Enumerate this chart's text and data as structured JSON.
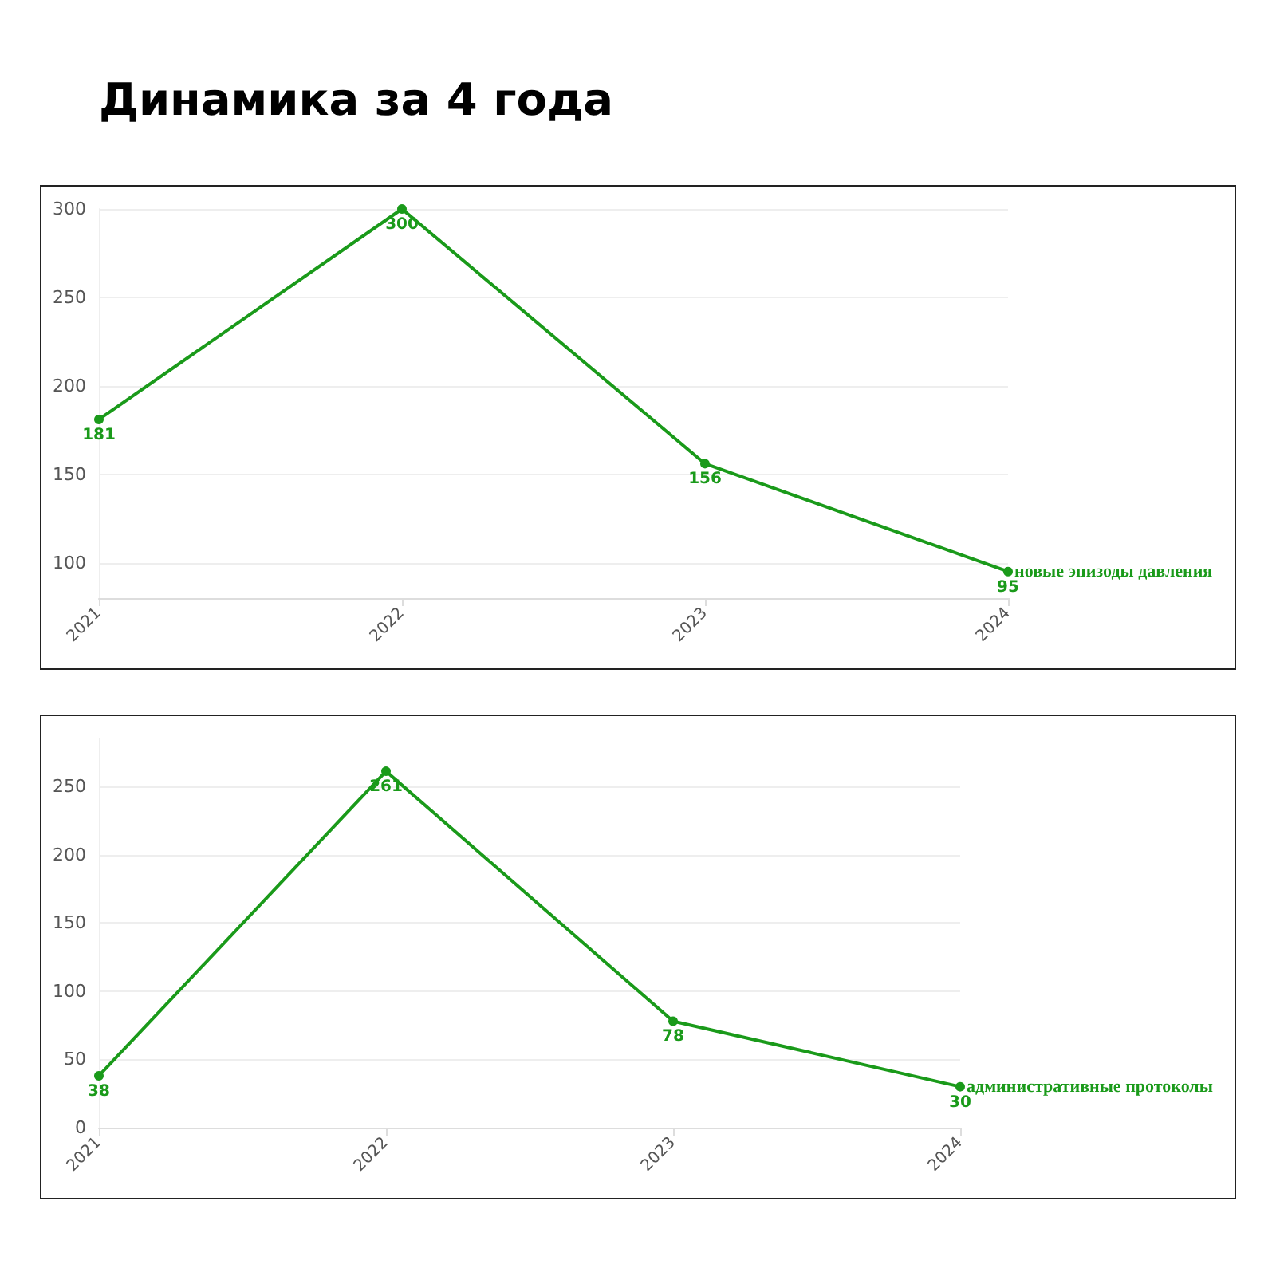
{
  "chart_data": [
    {
      "type": "line",
      "title": "Динамика за 4 года",
      "categories": [
        "2021",
        "2022",
        "2023",
        "2024"
      ],
      "series": [
        {
          "name": "новые эпизоды давления",
          "color": "#1a9a1a",
          "values": [
            181,
            300,
            156,
            95
          ]
        }
      ],
      "ylim": [
        80,
        300
      ],
      "yticks": [
        100,
        150,
        200,
        250,
        300
      ],
      "grid": "y",
      "marker": "circle",
      "data_labels": true,
      "legend": false
    },
    {
      "type": "line",
      "categories": [
        "2021",
        "2022",
        "2023",
        "2024"
      ],
      "series": [
        {
          "name": "административные протоколы",
          "color": "#1a9a1a",
          "values": [
            38,
            261,
            78,
            30
          ]
        }
      ],
      "ylim": [
        0,
        285
      ],
      "yticks": [
        0,
        50,
        100,
        150,
        200,
        250
      ],
      "grid": "y",
      "marker": "circle",
      "data_labels": true,
      "legend": false
    }
  ]
}
